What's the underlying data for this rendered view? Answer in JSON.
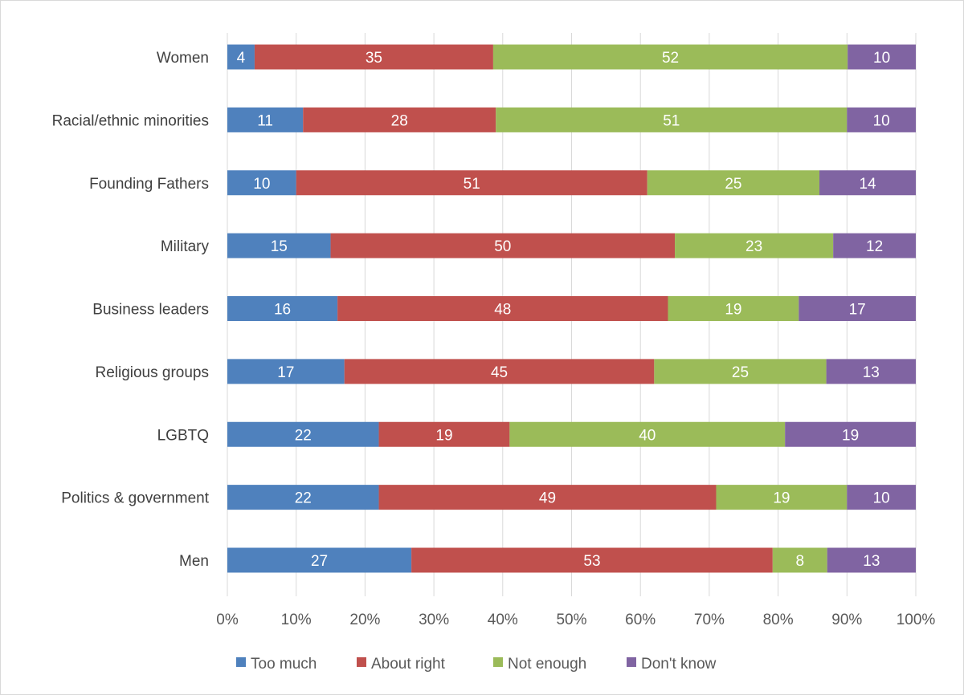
{
  "chart_data": {
    "type": "bar",
    "orientation": "horizontal",
    "stacked": "percent",
    "title": "",
    "xlabel": "",
    "ylabel": "",
    "xlim": [
      0,
      100
    ],
    "x_ticks": [
      "0%",
      "10%",
      "20%",
      "30%",
      "40%",
      "50%",
      "60%",
      "70%",
      "80%",
      "90%",
      "100%"
    ],
    "grid": true,
    "legend_position": "bottom",
    "categories": [
      "Women",
      "Racial/ethnic minorities",
      "Founding Fathers",
      "Military",
      "Business leaders",
      "Religious groups",
      "LGBTQ",
      "Politics & government",
      "Men"
    ],
    "series": [
      {
        "name": "Too much",
        "color": "#4F81BD",
        "values": [
          4,
          11,
          10,
          15,
          16,
          17,
          22,
          22,
          27
        ]
      },
      {
        "name": "About right",
        "color": "#C0504D",
        "values": [
          35,
          28,
          51,
          50,
          48,
          45,
          19,
          49,
          53
        ]
      },
      {
        "name": "Not enough",
        "color": "#9BBB59",
        "values": [
          52,
          51,
          25,
          23,
          19,
          25,
          40,
          19,
          8
        ]
      },
      {
        "name": "Don't know",
        "color": "#8064A2",
        "values": [
          10,
          10,
          14,
          12,
          17,
          13,
          19,
          10,
          13
        ]
      }
    ]
  }
}
